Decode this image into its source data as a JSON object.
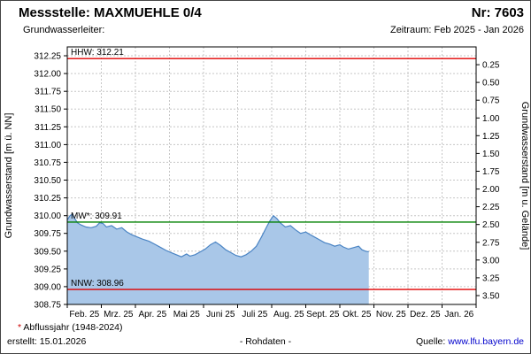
{
  "header": {
    "station_label": "Messstelle: MAXMUEHLE 0/4",
    "number_label": "Nr: 7603",
    "aquifer_label": "Grundwasserleiter:",
    "period_label": "Zeitraum: Feb 2025 - Jan 2026"
  },
  "footer": {
    "asterisk": "*",
    "abflussjahr_note": " Abflussjahr (1948-2024)",
    "created_label": "erstellt: 15.01.2026",
    "rohdaten_label": "- Rohdaten -",
    "source_label": "Quelle: ",
    "source_link": "www.lfu.bayern.de"
  },
  "chart_data": {
    "type": "area",
    "title": "Grundwasserstand MAXMUEHLE 0/4, Feb 2025 - Jan 2026",
    "ylabel_left": "Grundwasserstand [m ü. NN]",
    "ylabel_right": "Grundwasserstand [m u. Gelände]",
    "x_tick_labels": [
      "Feb. 25",
      "Mrz. 25",
      "Apr. 25",
      "Mai 25",
      "Juni 25",
      "Juli 25",
      "Aug. 25",
      "Sept. 25",
      "Okt. 25",
      "Nov. 25",
      "Dez. 25",
      "Jan. 26"
    ],
    "y_left_range": [
      308.75,
      312.375
    ],
    "y_left_tick_values": [
      312.25,
      312.0,
      311.75,
      311.5,
      311.25,
      311.0,
      310.75,
      310.5,
      310.25,
      310.0,
      309.75,
      309.5,
      309.25,
      309.0,
      308.75
    ],
    "y_left_tick_labels": [
      "312.25",
      "312.00",
      "311.75",
      "311.50",
      "311.25",
      "311.00",
      "310.75",
      "310.50",
      "310.25",
      "310.00",
      "309.75",
      "309.50",
      "309.25",
      "309.00",
      "308.75"
    ],
    "y_right_tick_values": [
      0.25,
      0.5,
      0.75,
      1.0,
      1.25,
      1.5,
      1.75,
      2.0,
      2.25,
      2.5,
      2.75,
      3.0,
      3.25,
      3.5
    ],
    "y_right_tick_labels": [
      "0.25",
      "0.50",
      "0.75",
      "1.00",
      "1.25",
      "1.50",
      "1.75",
      "2.00",
      "2.25",
      "2.50",
      "2.75",
      "3.00",
      "3.25",
      "3.50"
    ],
    "ground_level": 312.375,
    "reference_lines": [
      {
        "name": "hhw",
        "label": "HHW: 312.21",
        "value": 312.21,
        "color": "#e00000"
      },
      {
        "name": "mw",
        "label": "MW*: 309.91",
        "value": 309.91,
        "color": "#008000"
      },
      {
        "name": "nnw",
        "label": "NNW: 308.96",
        "value": 308.96,
        "color": "#e00000"
      }
    ],
    "series": [
      {
        "name": "Grundwasserstand Rohdaten",
        "x_months": [
          0,
          0.08,
          0.15,
          0.22,
          0.3,
          0.4,
          0.55,
          0.7,
          0.85,
          0.95,
          1.05,
          1.15,
          1.3,
          1.45,
          1.6,
          1.75,
          1.9,
          2.05,
          2.2,
          2.4,
          2.6,
          2.75,
          2.9,
          3.05,
          3.2,
          3.35,
          3.5,
          3.6,
          3.75,
          3.9,
          4.05,
          4.2,
          4.35,
          4.5,
          4.65,
          4.8,
          4.95,
          5.1,
          5.25,
          5.4,
          5.55,
          5.7,
          5.85,
          5.95,
          6.05,
          6.15,
          6.25,
          6.4,
          6.55,
          6.7,
          6.85,
          7.0,
          7.1,
          7.25,
          7.4,
          7.55,
          7.7,
          7.85,
          8.0,
          8.1,
          8.25,
          8.4,
          8.55,
          8.65,
          8.75,
          8.85
        ],
        "values": [
          309.94,
          310.0,
          310.02,
          309.96,
          309.9,
          309.87,
          309.84,
          309.83,
          309.85,
          309.9,
          309.89,
          309.84,
          309.86,
          309.81,
          309.83,
          309.77,
          309.73,
          309.7,
          309.67,
          309.64,
          309.59,
          309.55,
          309.51,
          309.48,
          309.45,
          309.42,
          309.46,
          309.43,
          309.45,
          309.49,
          309.53,
          309.59,
          309.63,
          309.58,
          309.52,
          309.48,
          309.44,
          309.42,
          309.45,
          309.5,
          309.57,
          309.7,
          309.84,
          309.93,
          310.0,
          309.96,
          309.9,
          309.84,
          309.86,
          309.8,
          309.75,
          309.77,
          309.74,
          309.7,
          309.66,
          309.62,
          309.6,
          309.57,
          309.59,
          309.56,
          309.53,
          309.55,
          309.57,
          309.52,
          309.5,
          309.49
        ]
      }
    ],
    "colors": {
      "area_fill": "#a9c7e8",
      "area_stroke": "#4a84c4",
      "grid": "#c6c6c6",
      "axis": "#000000"
    },
    "grid": true,
    "legend_position": "none"
  }
}
